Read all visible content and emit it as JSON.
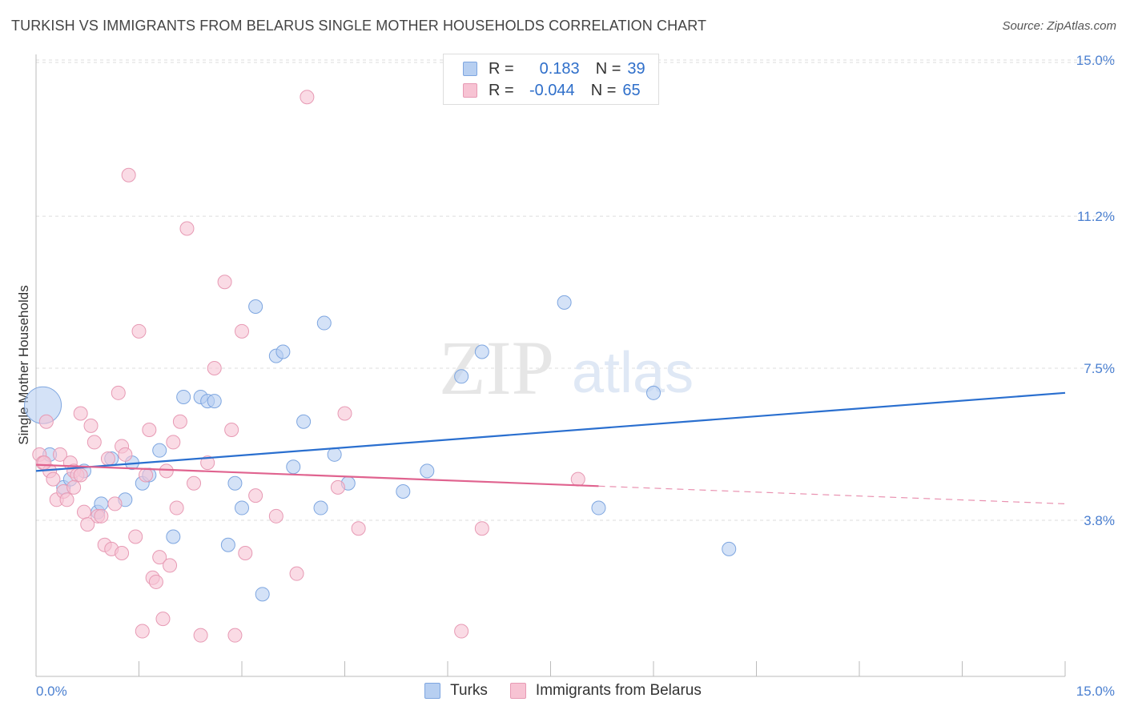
{
  "header": {
    "title": "TURKISH VS IMMIGRANTS FROM BELARUS SINGLE MOTHER HOUSEHOLDS CORRELATION CHART",
    "source": "Source: ZipAtlas.com"
  },
  "watermark": {
    "zip": "ZIP",
    "atlas": "atlas"
  },
  "stats": {
    "turks": {
      "r_label": "R =",
      "r_value": "0.183",
      "n_label": "N =",
      "n_value": "39"
    },
    "belarus": {
      "r_label": "R =",
      "r_value": "-0.044",
      "n_label": "N =",
      "n_value": "65"
    }
  },
  "legend": {
    "turks": "Turks",
    "belarus": "Immigrants from Belarus"
  },
  "colors": {
    "turks_fill": "#b7cff1",
    "turks_stroke": "#7ea6e0",
    "turks_line": "#2a6fcf",
    "belarus_fill": "#f7c3d3",
    "belarus_stroke": "#e79ab4",
    "belarus_line": "#e0638f",
    "tick_text": "#4a7fd0",
    "grid": "#dddddd"
  },
  "chart_data": {
    "type": "scatter",
    "title": "TURKISH VS IMMIGRANTS FROM BELARUS SINGLE MOTHER HOUSEHOLDS CORRELATION CHART",
    "xlabel": "",
    "ylabel": "Single Mother Households",
    "xlim": [
      0,
      15
    ],
    "ylim": [
      0,
      15.6
    ],
    "x_tick_labels": [
      "0.0%",
      "15.0%"
    ],
    "y_ticks": [
      3.8,
      7.5,
      11.2,
      15.0
    ],
    "y_tick_labels": [
      "3.8%",
      "7.5%",
      "11.2%",
      "15.0%"
    ],
    "grid": true,
    "legend_position": "bottom-center",
    "series": [
      {
        "name": "Turks",
        "points": [
          {
            "x": 0.1,
            "y": 6.6,
            "big": true
          },
          {
            "x": 0.2,
            "y": 5.4
          },
          {
            "x": 0.4,
            "y": 4.6
          },
          {
            "x": 0.5,
            "y": 4.8
          },
          {
            "x": 0.7,
            "y": 5.0
          },
          {
            "x": 0.9,
            "y": 4.0
          },
          {
            "x": 0.95,
            "y": 4.2
          },
          {
            "x": 1.1,
            "y": 5.3
          },
          {
            "x": 1.3,
            "y": 4.3
          },
          {
            "x": 1.4,
            "y": 5.2
          },
          {
            "x": 1.55,
            "y": 4.7
          },
          {
            "x": 1.65,
            "y": 4.9
          },
          {
            "x": 1.8,
            "y": 5.5
          },
          {
            "x": 2.0,
            "y": 3.4
          },
          {
            "x": 2.15,
            "y": 6.8
          },
          {
            "x": 2.4,
            "y": 6.8
          },
          {
            "x": 2.5,
            "y": 6.7
          },
          {
            "x": 2.6,
            "y": 6.7
          },
          {
            "x": 2.8,
            "y": 3.2
          },
          {
            "x": 2.9,
            "y": 4.7
          },
          {
            "x": 3.0,
            "y": 4.1
          },
          {
            "x": 3.2,
            "y": 9.0
          },
          {
            "x": 3.3,
            "y": 2.0
          },
          {
            "x": 3.5,
            "y": 7.8
          },
          {
            "x": 3.6,
            "y": 7.9
          },
          {
            "x": 3.75,
            "y": 5.1
          },
          {
            "x": 3.9,
            "y": 6.2
          },
          {
            "x": 4.15,
            "y": 4.1
          },
          {
            "x": 4.2,
            "y": 8.6
          },
          {
            "x": 4.35,
            "y": 5.4
          },
          {
            "x": 4.55,
            "y": 4.7
          },
          {
            "x": 5.35,
            "y": 4.5
          },
          {
            "x": 5.7,
            "y": 5.0
          },
          {
            "x": 6.2,
            "y": 7.3
          },
          {
            "x": 6.5,
            "y": 7.9
          },
          {
            "x": 7.7,
            "y": 9.1
          },
          {
            "x": 8.2,
            "y": 4.1
          },
          {
            "x": 9.0,
            "y": 6.9
          },
          {
            "x": 10.1,
            "y": 3.1
          }
        ]
      },
      {
        "name": "Immigrants from Belarus",
        "points": [
          {
            "x": 0.05,
            "y": 5.4
          },
          {
            "x": 0.1,
            "y": 5.2
          },
          {
            "x": 0.15,
            "y": 6.2
          },
          {
            "x": 0.2,
            "y": 5.0
          },
          {
            "x": 0.25,
            "y": 4.8
          },
          {
            "x": 0.3,
            "y": 4.3
          },
          {
            "x": 0.35,
            "y": 5.4
          },
          {
            "x": 0.4,
            "y": 4.5
          },
          {
            "x": 0.45,
            "y": 4.3
          },
          {
            "x": 0.5,
            "y": 5.2
          },
          {
            "x": 0.55,
            "y": 5.0
          },
          {
            "x": 0.6,
            "y": 4.9
          },
          {
            "x": 0.65,
            "y": 6.4
          },
          {
            "x": 0.7,
            "y": 4.0
          },
          {
            "x": 0.75,
            "y": 3.7
          },
          {
            "x": 0.8,
            "y": 6.1
          },
          {
            "x": 0.85,
            "y": 5.7
          },
          {
            "x": 0.9,
            "y": 3.9
          },
          {
            "x": 1.0,
            "y": 3.2
          },
          {
            "x": 1.05,
            "y": 5.3
          },
          {
            "x": 1.1,
            "y": 3.1
          },
          {
            "x": 1.15,
            "y": 4.2
          },
          {
            "x": 1.2,
            "y": 6.9
          },
          {
            "x": 1.25,
            "y": 5.6
          },
          {
            "x": 1.3,
            "y": 5.4
          },
          {
            "x": 1.35,
            "y": 12.2
          },
          {
            "x": 1.45,
            "y": 3.4
          },
          {
            "x": 1.5,
            "y": 8.4
          },
          {
            "x": 1.55,
            "y": 1.1
          },
          {
            "x": 1.6,
            "y": 4.9
          },
          {
            "x": 1.65,
            "y": 6.0
          },
          {
            "x": 1.7,
            "y": 2.4
          },
          {
            "x": 1.75,
            "y": 2.3
          },
          {
            "x": 1.8,
            "y": 2.9
          },
          {
            "x": 1.85,
            "y": 1.4
          },
          {
            "x": 1.9,
            "y": 5.0
          },
          {
            "x": 1.95,
            "y": 2.7
          },
          {
            "x": 2.0,
            "y": 5.7
          },
          {
            "x": 2.05,
            "y": 4.1
          },
          {
            "x": 2.1,
            "y": 6.2
          },
          {
            "x": 2.2,
            "y": 10.9
          },
          {
            "x": 2.3,
            "y": 4.7
          },
          {
            "x": 2.4,
            "y": 1.0
          },
          {
            "x": 2.5,
            "y": 5.2
          },
          {
            "x": 2.6,
            "y": 7.5
          },
          {
            "x": 2.75,
            "y": 9.6
          },
          {
            "x": 2.85,
            "y": 6.0
          },
          {
            "x": 3.0,
            "y": 8.4
          },
          {
            "x": 3.05,
            "y": 3.0
          },
          {
            "x": 3.2,
            "y": 4.4
          },
          {
            "x": 3.5,
            "y": 3.9
          },
          {
            "x": 3.8,
            "y": 2.5
          },
          {
            "x": 3.95,
            "y": 14.1
          },
          {
            "x": 4.4,
            "y": 4.6
          },
          {
            "x": 4.5,
            "y": 6.4
          },
          {
            "x": 4.7,
            "y": 3.6
          },
          {
            "x": 6.2,
            "y": 1.1
          },
          {
            "x": 6.5,
            "y": 3.6
          },
          {
            "x": 7.9,
            "y": 4.8
          },
          {
            "x": 0.55,
            "y": 4.6
          },
          {
            "x": 0.65,
            "y": 4.9
          },
          {
            "x": 1.25,
            "y": 3.0
          },
          {
            "x": 0.95,
            "y": 3.9
          },
          {
            "x": 2.9,
            "y": 1.0
          },
          {
            "x": 0.12,
            "y": 5.2
          }
        ]
      }
    ],
    "trend_lines": [
      {
        "series": "Turks",
        "x": [
          0,
          15
        ],
        "y": [
          5.0,
          6.9
        ],
        "solid_to": 15
      },
      {
        "series": "Immigrants from Belarus",
        "x": [
          0,
          15
        ],
        "y": [
          5.15,
          4.2
        ],
        "solid_to": 8.2
      }
    ]
  }
}
